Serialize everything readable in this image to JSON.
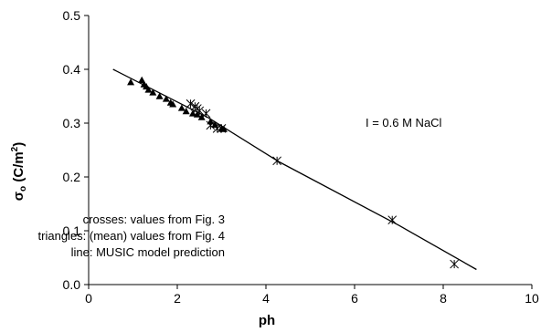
{
  "chart_data": {
    "type": "scatter",
    "xlabel": "ph",
    "ylabel_main": "σ",
    "ylabel_sub": "o",
    "ylabel_unit": " (C/m",
    "ylabel_sup": "2",
    "ylabel_close": ")",
    "xlim": [
      0,
      10
    ],
    "ylim": [
      0,
      0.5
    ],
    "xticks": [
      0,
      2,
      4,
      6,
      8,
      10
    ],
    "xtick_labels": [
      "0",
      "2",
      "4",
      "6",
      "8",
      "10"
    ],
    "yticks": [
      0,
      0.1,
      0.2,
      0.3,
      0.4,
      0.5
    ],
    "ytick_labels": [
      "0.0",
      "0.1",
      "0.2",
      "0.3",
      "0.4",
      "0.5"
    ],
    "grid": false,
    "annotations": {
      "ionic_strength": "I = 0.6 M NaCl",
      "legend_crosses": "crosses: values from Fig. 3",
      "legend_triangles": "triangles: (mean) values from Fig. 4",
      "legend_line": "line: MUSIC model prediction"
    },
    "series": [
      {
        "marker": "triangle",
        "points": [
          [
            0.95,
            0.376
          ],
          [
            1.2,
            0.38
          ],
          [
            1.25,
            0.372
          ],
          [
            1.3,
            0.368
          ],
          [
            1.35,
            0.362
          ],
          [
            1.45,
            0.357
          ],
          [
            1.6,
            0.35
          ],
          [
            1.75,
            0.345
          ],
          [
            1.85,
            0.338
          ],
          [
            1.9,
            0.335
          ],
          [
            2.1,
            0.328
          ],
          [
            2.2,
            0.322
          ],
          [
            2.35,
            0.318
          ],
          [
            2.45,
            0.316
          ],
          [
            2.55,
            0.311
          ],
          [
            2.75,
            0.303
          ],
          [
            2.85,
            0.297
          ],
          [
            3.0,
            0.29
          ],
          [
            3.05,
            0.289
          ]
        ]
      },
      {
        "marker": "asterisk",
        "points": [
          [
            2.3,
            0.336
          ],
          [
            2.4,
            0.331
          ],
          [
            2.45,
            0.327
          ],
          [
            2.5,
            0.323
          ],
          [
            2.65,
            0.318
          ],
          [
            2.75,
            0.296
          ],
          [
            2.9,
            0.29
          ],
          [
            3.0,
            0.29
          ],
          [
            4.25,
            0.23
          ],
          [
            6.85,
            0.12
          ],
          [
            8.25,
            0.038
          ]
        ]
      },
      {
        "marker": "line",
        "points": [
          [
            0.55,
            0.4
          ],
          [
            2.7,
            0.31
          ],
          [
            4.3,
            0.228
          ],
          [
            7.0,
            0.11
          ],
          [
            8.75,
            0.028
          ]
        ]
      }
    ]
  }
}
